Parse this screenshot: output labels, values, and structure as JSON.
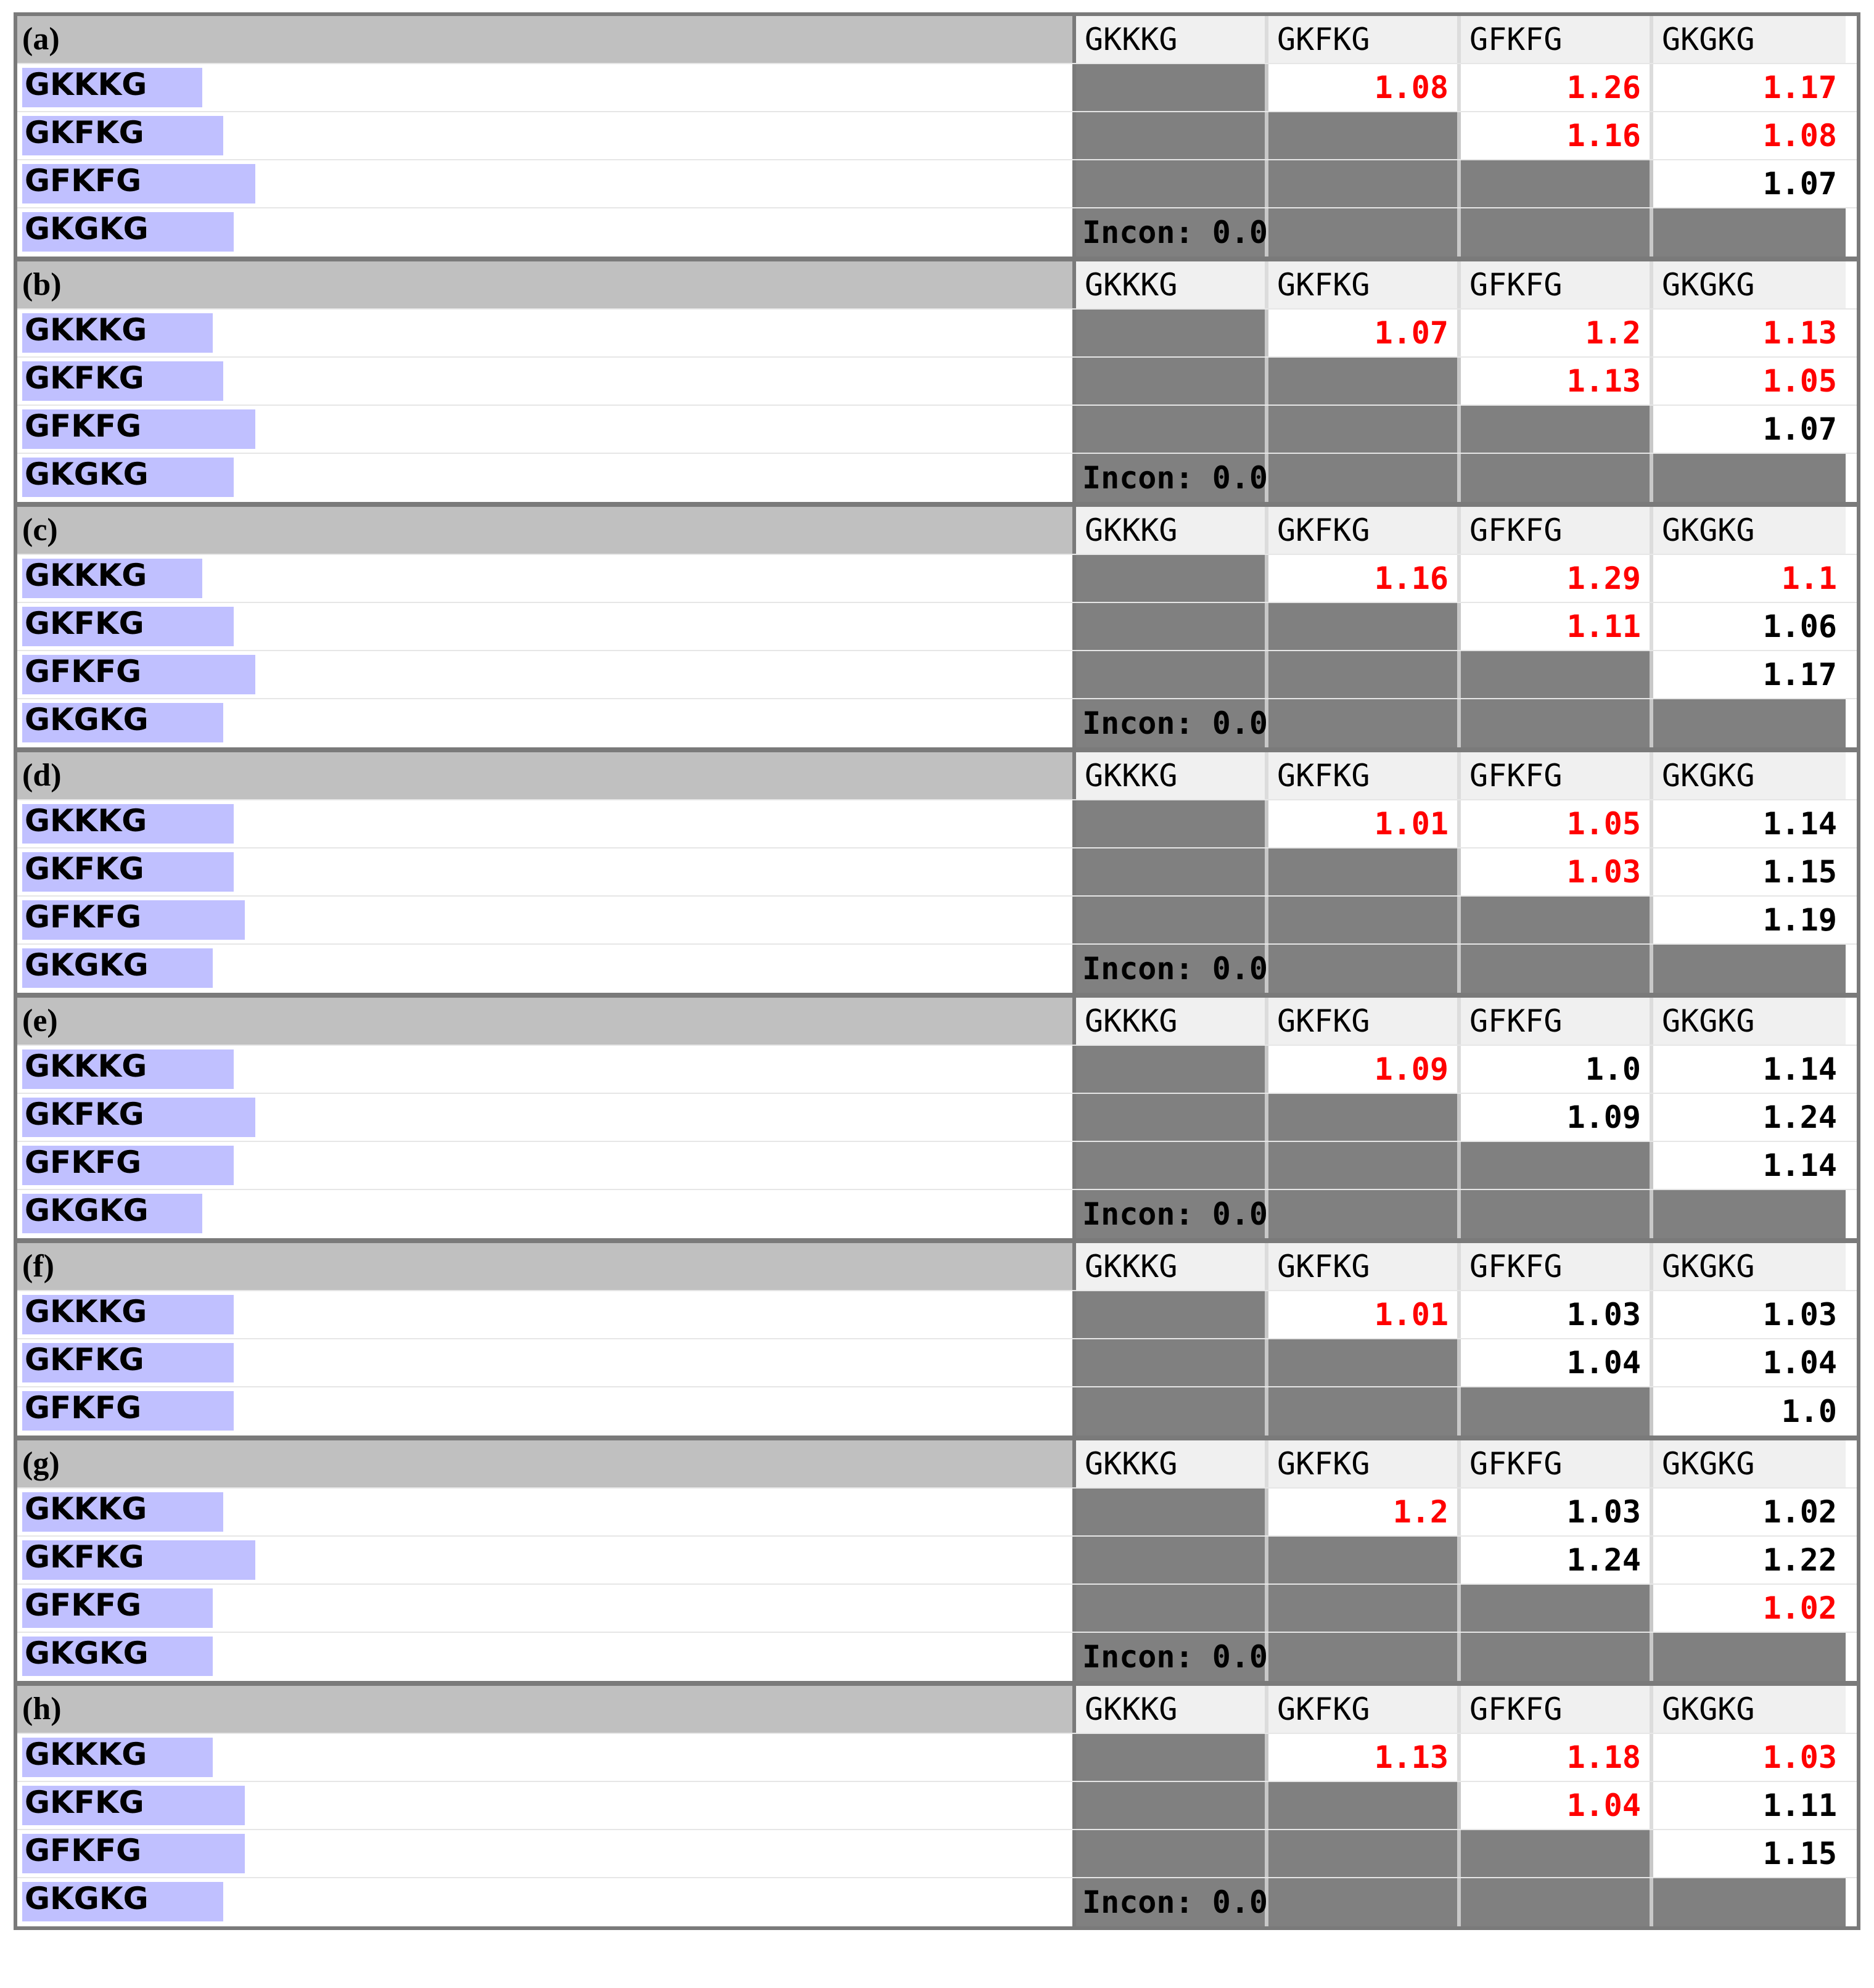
{
  "columns": [
    "GKKKG",
    "GKFKG",
    "GFKFG",
    "GKGKG"
  ],
  "incon_label": "Incon: 0.00",
  "colors": {
    "red": "#ff0000",
    "bar": "#c0c0ff",
    "grey": "#808080",
    "header": "#c0c0c0"
  },
  "panels": [
    {
      "label": "(a)",
      "has_incon": true,
      "rows": [
        {
          "name": "GKKKG",
          "bar_pct": 0.17,
          "cells": [
            null,
            {
              "v": "1.08",
              "red": true
            },
            {
              "v": "1.26",
              "red": true
            },
            {
              "v": "1.17",
              "red": true
            }
          ]
        },
        {
          "name": "GKFKG",
          "bar_pct": 0.19,
          "cells": [
            null,
            null,
            {
              "v": "1.16",
              "red": true
            },
            {
              "v": "1.08",
              "red": true
            }
          ]
        },
        {
          "name": "GFKFG",
          "bar_pct": 0.22,
          "cells": [
            null,
            null,
            null,
            {
              "v": "1.07",
              "red": false
            }
          ]
        },
        {
          "name": "GKGKG",
          "bar_pct": 0.2,
          "cells": [
            "incon",
            null,
            null,
            null
          ]
        }
      ]
    },
    {
      "label": "(b)",
      "has_incon": true,
      "rows": [
        {
          "name": "GKKKG",
          "bar_pct": 0.18,
          "cells": [
            null,
            {
              "v": "1.07",
              "red": true
            },
            {
              "v": "1.2",
              "red": true
            },
            {
              "v": "1.13",
              "red": true
            }
          ]
        },
        {
          "name": "GKFKG",
          "bar_pct": 0.19,
          "cells": [
            null,
            null,
            {
              "v": "1.13",
              "red": true
            },
            {
              "v": "1.05",
              "red": true
            }
          ]
        },
        {
          "name": "GFKFG",
          "bar_pct": 0.22,
          "cells": [
            null,
            null,
            null,
            {
              "v": "1.07",
              "red": false
            }
          ]
        },
        {
          "name": "GKGKG",
          "bar_pct": 0.2,
          "cells": [
            "incon",
            null,
            null,
            null
          ]
        }
      ]
    },
    {
      "label": "(c)",
      "has_incon": true,
      "rows": [
        {
          "name": "GKKKG",
          "bar_pct": 0.17,
          "cells": [
            null,
            {
              "v": "1.16",
              "red": true
            },
            {
              "v": "1.29",
              "red": true
            },
            {
              "v": "1.1",
              "red": true
            }
          ]
        },
        {
          "name": "GKFKG",
          "bar_pct": 0.2,
          "cells": [
            null,
            null,
            {
              "v": "1.11",
              "red": true
            },
            {
              "v": "1.06",
              "red": false
            }
          ]
        },
        {
          "name": "GFKFG",
          "bar_pct": 0.22,
          "cells": [
            null,
            null,
            null,
            {
              "v": "1.17",
              "red": false
            }
          ]
        },
        {
          "name": "GKGKG",
          "bar_pct": 0.19,
          "cells": [
            "incon",
            null,
            null,
            null
          ]
        }
      ]
    },
    {
      "label": "(d)",
      "has_incon": true,
      "rows": [
        {
          "name": "GKKKG",
          "bar_pct": 0.2,
          "cells": [
            null,
            {
              "v": "1.01",
              "red": true
            },
            {
              "v": "1.05",
              "red": true
            },
            {
              "v": "1.14",
              "red": false
            }
          ]
        },
        {
          "name": "GKFKG",
          "bar_pct": 0.2,
          "cells": [
            null,
            null,
            {
              "v": "1.03",
              "red": true
            },
            {
              "v": "1.15",
              "red": false
            }
          ]
        },
        {
          "name": "GFKFG",
          "bar_pct": 0.21,
          "cells": [
            null,
            null,
            null,
            {
              "v": "1.19",
              "red": false
            }
          ]
        },
        {
          "name": "GKGKG",
          "bar_pct": 0.18,
          "cells": [
            "incon",
            null,
            null,
            null
          ]
        }
      ]
    },
    {
      "label": "(e)",
      "has_incon": true,
      "rows": [
        {
          "name": "GKKKG",
          "bar_pct": 0.2,
          "cells": [
            null,
            {
              "v": "1.09",
              "red": true
            },
            {
              "v": "1.0",
              "red": false
            },
            {
              "v": "1.14",
              "red": false
            }
          ]
        },
        {
          "name": "GKFKG",
          "bar_pct": 0.22,
          "cells": [
            null,
            null,
            {
              "v": "1.09",
              "red": false
            },
            {
              "v": "1.24",
              "red": false
            }
          ]
        },
        {
          "name": "GFKFG",
          "bar_pct": 0.2,
          "cells": [
            null,
            null,
            null,
            {
              "v": "1.14",
              "red": false
            }
          ]
        },
        {
          "name": "GKGKG",
          "bar_pct": 0.17,
          "cells": [
            "incon",
            null,
            null,
            null
          ]
        }
      ]
    },
    {
      "label": "(f)",
      "has_incon": false,
      "rows": [
        {
          "name": "GKKKG",
          "bar_pct": 0.2,
          "cells": [
            null,
            {
              "v": "1.01",
              "red": true
            },
            {
              "v": "1.03",
              "red": false
            },
            {
              "v": "1.03",
              "red": false
            }
          ]
        },
        {
          "name": "GKFKG",
          "bar_pct": 0.2,
          "cells": [
            null,
            null,
            {
              "v": "1.04",
              "red": false
            },
            {
              "v": "1.04",
              "red": false
            }
          ]
        },
        {
          "name": "GFKFG",
          "bar_pct": 0.2,
          "cells": [
            null,
            null,
            null,
            {
              "v": "1.0",
              "red": false
            }
          ]
        }
      ]
    },
    {
      "label": "(g)",
      "has_incon": true,
      "rows": [
        {
          "name": "GKKKG",
          "bar_pct": 0.19,
          "cells": [
            null,
            {
              "v": "1.2",
              "red": true
            },
            {
              "v": "1.03",
              "red": false
            },
            {
              "v": "1.02",
              "red": false
            }
          ]
        },
        {
          "name": "GKFKG",
          "bar_pct": 0.22,
          "cells": [
            null,
            null,
            {
              "v": "1.24",
              "red": false
            },
            {
              "v": "1.22",
              "red": false
            }
          ]
        },
        {
          "name": "GFKFG",
          "bar_pct": 0.18,
          "cells": [
            null,
            null,
            null,
            {
              "v": "1.02",
              "red": true
            }
          ]
        },
        {
          "name": "GKGKG",
          "bar_pct": 0.18,
          "cells": [
            "incon",
            null,
            null,
            null
          ]
        }
      ]
    },
    {
      "label": "(h)",
      "has_incon": true,
      "rows": [
        {
          "name": "GKKKG",
          "bar_pct": 0.18,
          "cells": [
            null,
            {
              "v": "1.13",
              "red": true
            },
            {
              "v": "1.18",
              "red": true
            },
            {
              "v": "1.03",
              "red": true
            }
          ]
        },
        {
          "name": "GKFKG",
          "bar_pct": 0.21,
          "cells": [
            null,
            null,
            {
              "v": "1.04",
              "red": true
            },
            {
              "v": "1.11",
              "red": false
            }
          ]
        },
        {
          "name": "GFKFG",
          "bar_pct": 0.21,
          "cells": [
            null,
            null,
            null,
            {
              "v": "1.15",
              "red": false
            }
          ]
        },
        {
          "name": "GKGKG",
          "bar_pct": 0.19,
          "cells": [
            "incon",
            null,
            null,
            null
          ]
        }
      ]
    }
  ]
}
